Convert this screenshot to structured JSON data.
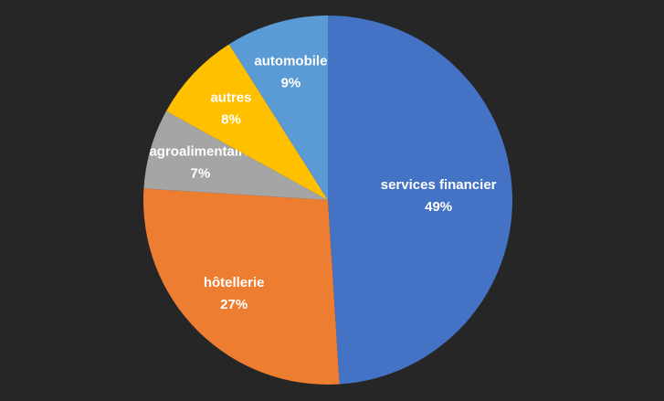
{
  "chart_data": {
    "type": "pie",
    "categories": [
      "services financier",
      "hôtellerie",
      "agroalimentaire",
      "autres",
      "automobile"
    ],
    "values": [
      49,
      27,
      7,
      8,
      9
    ],
    "value_labels": [
      "49%",
      "27%",
      "7%",
      "8%",
      "9%"
    ],
    "colors": [
      "#4472c4",
      "#ed7d31",
      "#a5a5a5",
      "#ffc000",
      "#5b9bd5"
    ]
  }
}
